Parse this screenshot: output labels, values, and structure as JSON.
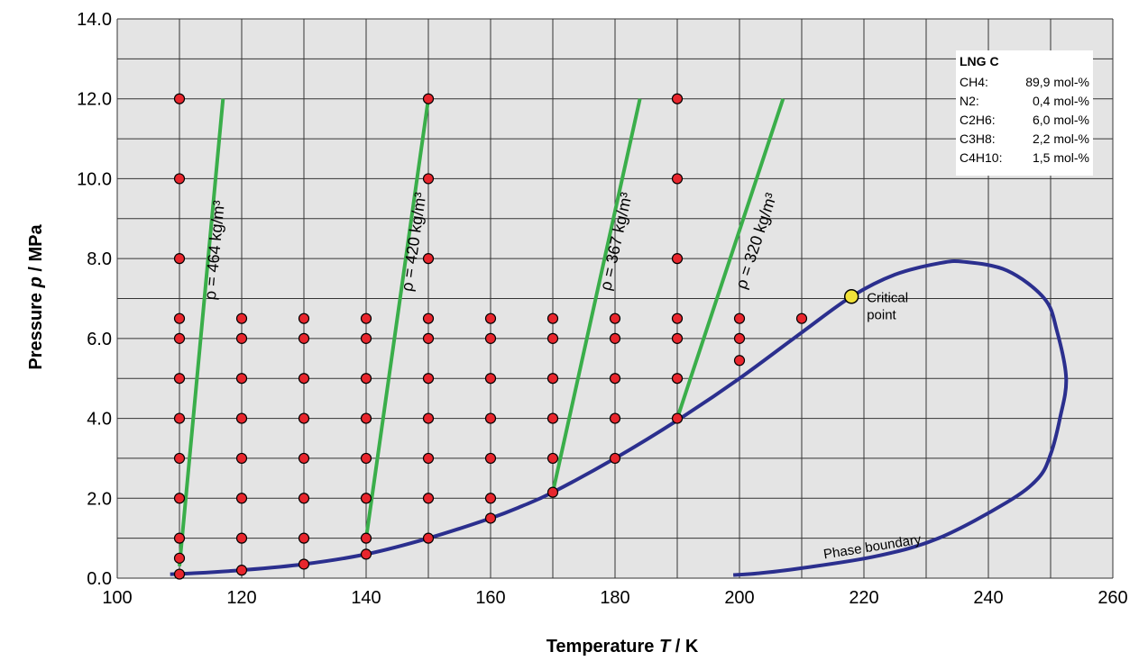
{
  "chart_data": {
    "type": "scatter",
    "xlabel_prefix": "Temperature ",
    "xlabel_symbol": "T",
    "xlabel_unit": " / K",
    "ylabel_prefix": "Pressure ",
    "ylabel_symbol": "p",
    "ylabel_unit": " / MPa",
    "xlim": [
      100,
      260
    ],
    "ylim": [
      0,
      14
    ],
    "xticks": [
      100,
      120,
      140,
      160,
      180,
      200,
      220,
      240,
      260
    ],
    "yticks": [
      0,
      2,
      4,
      6,
      8,
      10,
      12,
      14
    ],
    "ytick_labels": [
      "0.0",
      "2.0",
      "4.0",
      "6.0",
      "8.0",
      "10.0",
      "12.0",
      "14.0"
    ],
    "grid": true,
    "grid_x_step": 10,
    "grid_y_step": 1,
    "colors": {
      "plot_bg": "#e4e4e4",
      "grid": "#333333",
      "phase_boundary": "#2b2f8e",
      "isochore": "#3aae4a",
      "measurement": "#e8262d",
      "critical_point": "#f2e23a"
    },
    "measurement_points": [
      [
        110,
        0.1
      ],
      [
        110,
        0.5
      ],
      [
        110,
        1.0
      ],
      [
        110,
        2.0
      ],
      [
        110,
        3.0
      ],
      [
        110,
        4.0
      ],
      [
        110,
        5.0
      ],
      [
        110,
        6.0
      ],
      [
        110,
        6.5
      ],
      [
        110,
        8.0
      ],
      [
        110,
        10.0
      ],
      [
        110,
        12.0
      ],
      [
        120,
        0.2
      ],
      [
        120,
        1.0
      ],
      [
        120,
        2.0
      ],
      [
        120,
        3.0
      ],
      [
        120,
        4.0
      ],
      [
        120,
        5.0
      ],
      [
        120,
        6.0
      ],
      [
        120,
        6.5
      ],
      [
        130,
        0.35
      ],
      [
        130,
        1.0
      ],
      [
        130,
        2.0
      ],
      [
        130,
        3.0
      ],
      [
        130,
        4.0
      ],
      [
        130,
        5.0
      ],
      [
        130,
        6.0
      ],
      [
        130,
        6.5
      ],
      [
        140,
        0.6
      ],
      [
        140,
        1.0
      ],
      [
        140,
        2.0
      ],
      [
        140,
        3.0
      ],
      [
        140,
        4.0
      ],
      [
        140,
        5.0
      ],
      [
        140,
        6.0
      ],
      [
        140,
        6.5
      ],
      [
        150,
        1.0
      ],
      [
        150,
        2.0
      ],
      [
        150,
        3.0
      ],
      [
        150,
        4.0
      ],
      [
        150,
        5.0
      ],
      [
        150,
        6.0
      ],
      [
        150,
        6.5
      ],
      [
        150,
        8.0
      ],
      [
        150,
        10.0
      ],
      [
        150,
        12.0
      ],
      [
        160,
        1.5
      ],
      [
        160,
        2.0
      ],
      [
        160,
        3.0
      ],
      [
        160,
        4.0
      ],
      [
        160,
        5.0
      ],
      [
        160,
        6.0
      ],
      [
        160,
        6.5
      ],
      [
        170,
        2.15
      ],
      [
        170,
        3.0
      ],
      [
        170,
        4.0
      ],
      [
        170,
        5.0
      ],
      [
        170,
        6.0
      ],
      [
        170,
        6.5
      ],
      [
        180,
        3.0
      ],
      [
        180,
        4.0
      ],
      [
        180,
        5.0
      ],
      [
        180,
        6.0
      ],
      [
        180,
        6.5
      ],
      [
        190,
        4.0
      ],
      [
        190,
        5.0
      ],
      [
        190,
        6.0
      ],
      [
        190,
        6.5
      ],
      [
        190,
        8.0
      ],
      [
        190,
        10.0
      ],
      [
        190,
        12.0
      ],
      [
        200,
        5.45
      ],
      [
        200,
        6.0
      ],
      [
        200,
        6.5
      ],
      [
        210,
        6.5
      ]
    ],
    "phase_boundary": [
      [
        108.5,
        0.1
      ],
      [
        112,
        0.12
      ],
      [
        120,
        0.2
      ],
      [
        130,
        0.35
      ],
      [
        140,
        0.6
      ],
      [
        150,
        1.0
      ],
      [
        160,
        1.5
      ],
      [
        165,
        1.8
      ],
      [
        170,
        2.15
      ],
      [
        180,
        3.0
      ],
      [
        190,
        3.95
      ],
      [
        200,
        5.0
      ],
      [
        210,
        6.15
      ],
      [
        218,
        7.05
      ],
      [
        225,
        7.6
      ],
      [
        232,
        7.88
      ],
      [
        236,
        7.92
      ],
      [
        243,
        7.7
      ],
      [
        249,
        7.0
      ],
      [
        251,
        6.2
      ],
      [
        252.5,
        5.0
      ],
      [
        251.5,
        4.0
      ],
      [
        250,
        3.1
      ],
      [
        248,
        2.5
      ],
      [
        243,
        1.9
      ],
      [
        232,
        1.0
      ],
      [
        222,
        0.55
      ],
      [
        210,
        0.25
      ],
      [
        203,
        0.12
      ],
      [
        199,
        0.08
      ]
    ],
    "isochores": [
      {
        "label": "ρ = 464 kg/m³",
        "from": [
          110,
          0.3
        ],
        "to": [
          117,
          12.0
        ],
        "label_at": [
          116.5,
          8.2
        ]
      },
      {
        "label": "ρ = 420 kg/m³",
        "from": [
          140,
          1.0
        ],
        "to": [
          150,
          12.0
        ],
        "label_at": [
          148.5,
          8.4
        ]
      },
      {
        "label": "ρ = 367 kg/m³",
        "from": [
          170,
          2.15
        ],
        "to": [
          184,
          12.0
        ],
        "label_at": [
          181,
          8.4
        ]
      },
      {
        "label": "ρ = 320 kg/m³",
        "from": [
          190,
          4.0
        ],
        "to": [
          207,
          12.0
        ],
        "label_at": [
          203.5,
          8.4
        ]
      }
    ],
    "critical_point": {
      "T": 218,
      "p": 7.05,
      "label_line1": "Critical",
      "label_line2": "point"
    },
    "phase_boundary_label": "Phase boundary",
    "composition": {
      "title": "LNG C",
      "rows": [
        {
          "name": "CH4:",
          "value": "89,9 mol-%"
        },
        {
          "name": "N2:",
          "value": "0,4 mol-%"
        },
        {
          "name": "C2H6:",
          "value": "6,0 mol-%"
        },
        {
          "name": "C3H8:",
          "value": "2,2 mol-%"
        },
        {
          "name": "C4H10:",
          "value": "1,5 mol-%"
        }
      ]
    }
  }
}
